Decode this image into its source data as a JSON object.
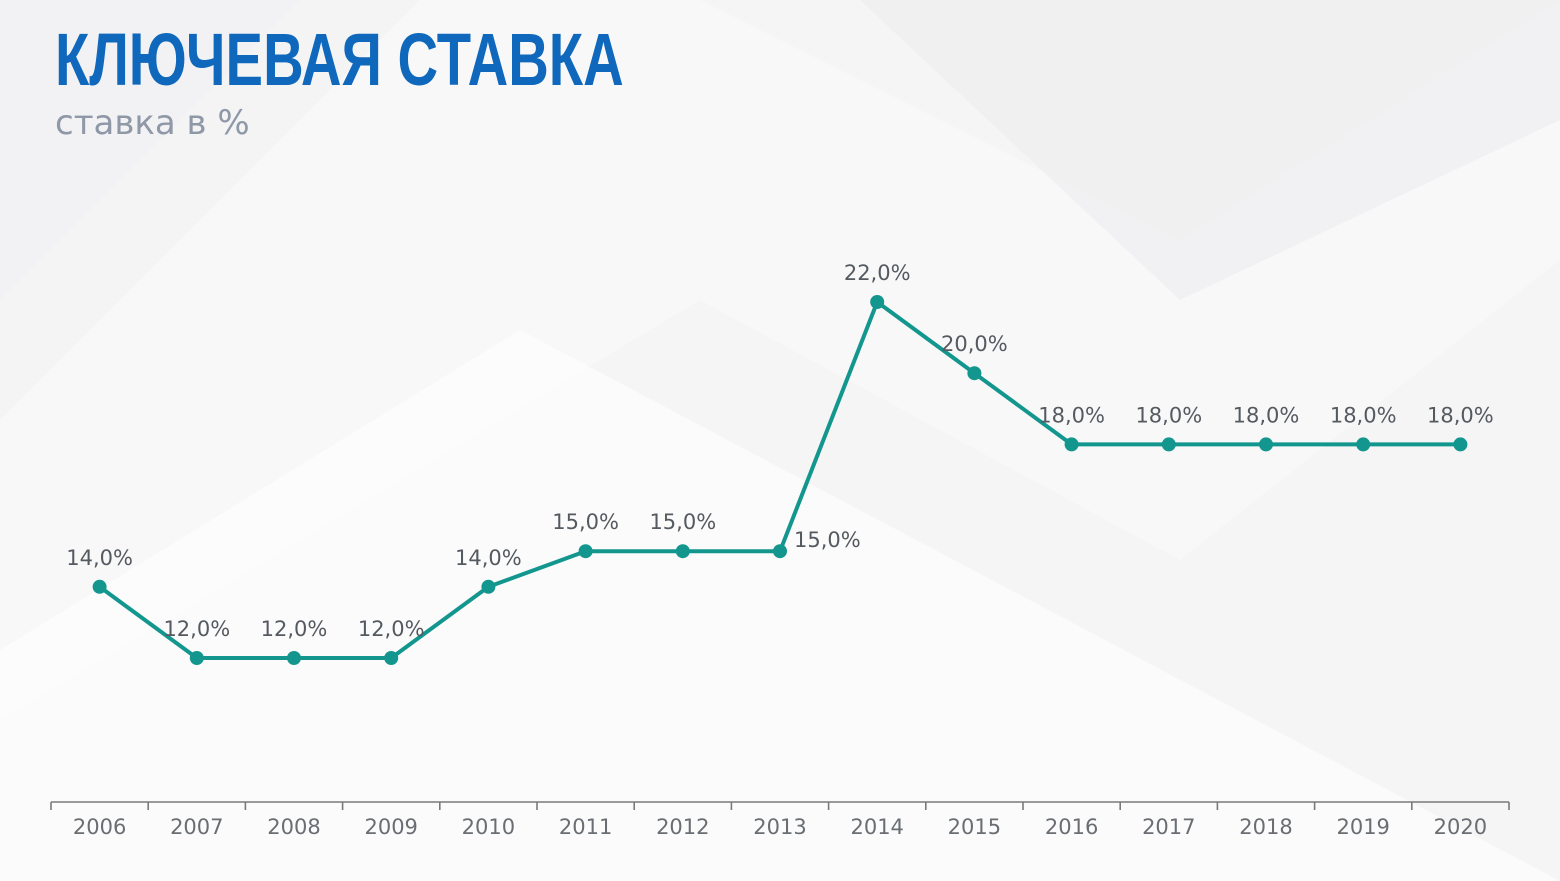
{
  "header": {
    "title": "КЛЮЧЕВАЯ СТАВКА",
    "subtitle": "ставка в %"
  },
  "colors": {
    "title": "#0f68bb",
    "subtitle": "#8e98a6",
    "series": "#13968e",
    "axis": "#7a7a7a"
  },
  "chart_data": {
    "type": "line",
    "categories": [
      "2006",
      "2007",
      "2008",
      "2009",
      "2010",
      "2011",
      "2012",
      "2013",
      "2014",
      "2015",
      "2016",
      "2017",
      "2018",
      "2019",
      "2020"
    ],
    "series": [
      {
        "values": [
          14.0,
          12.0,
          12.0,
          12.0,
          14.0,
          15.0,
          15.0,
          15.0,
          22.0,
          20.0,
          18.0,
          18.0,
          18.0,
          18.0,
          18.0
        ],
        "labels": [
          "14,0%",
          "12,0%",
          "12,0%",
          "12,0%",
          "14,0%",
          "15,0%",
          "15,0%",
          "15,0%",
          "22,0%",
          "20,0%",
          "18,0%",
          "18,0%",
          "18,0%",
          "18,0%",
          "18,0%"
        ]
      }
    ],
    "title": "КЛЮЧЕВАЯ СТАВКА",
    "subtitle": "ставка в %",
    "grid": false,
    "legend": false,
    "markers": "circle"
  }
}
